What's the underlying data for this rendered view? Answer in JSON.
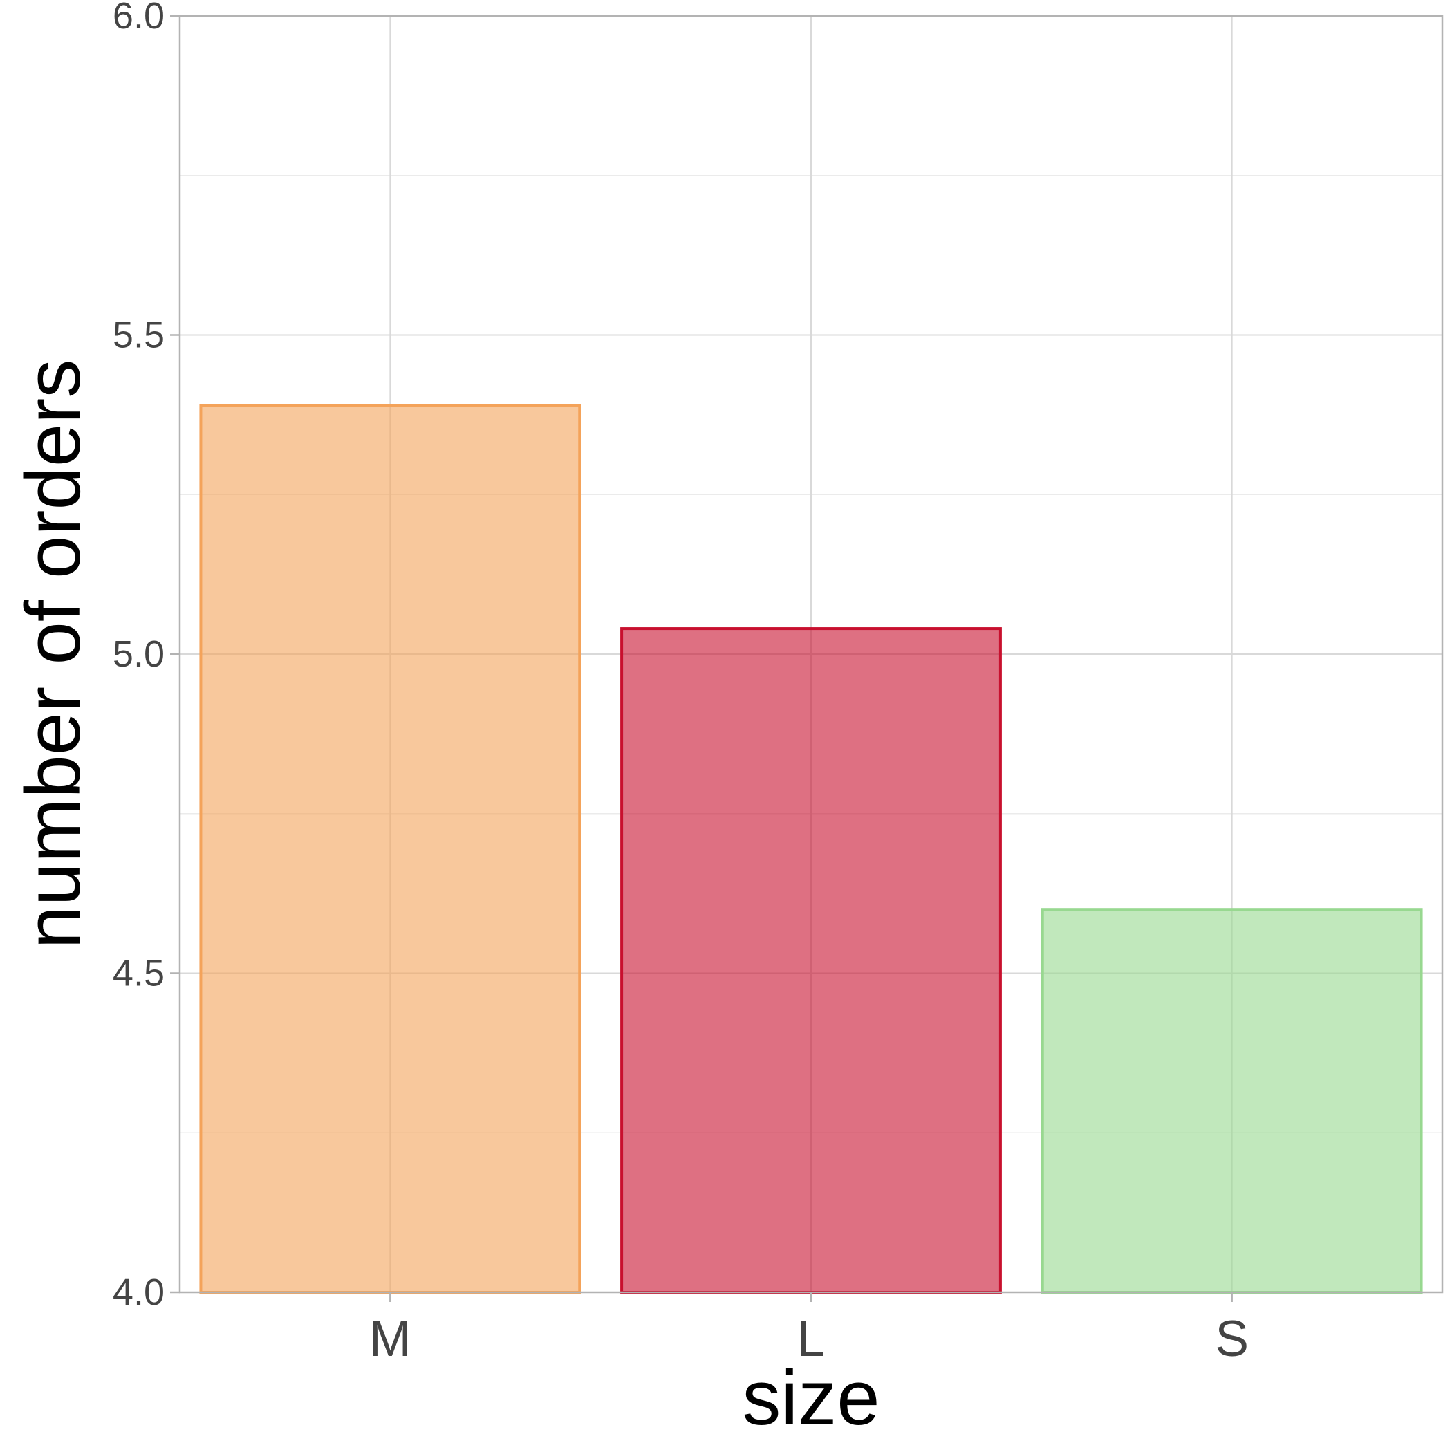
{
  "chart_data": {
    "type": "bar",
    "categories": [
      "M",
      "L",
      "S"
    ],
    "values": [
      5.39,
      5.04,
      4.6
    ],
    "colors": [
      "#f4a35a",
      "#c8102e",
      "#98d890"
    ],
    "fill_opacity": 0.6,
    "xlabel": "size",
    "ylabel": "number of orders",
    "ylim": [
      4.0,
      6.0
    ],
    "yticks": [
      4.0,
      4.5,
      5.0,
      5.5,
      6.0
    ],
    "yticks_labels": [
      "4.0",
      "4.5",
      "5.0",
      "5.5",
      "6.0"
    ],
    "grid": true,
    "legend": "none"
  }
}
